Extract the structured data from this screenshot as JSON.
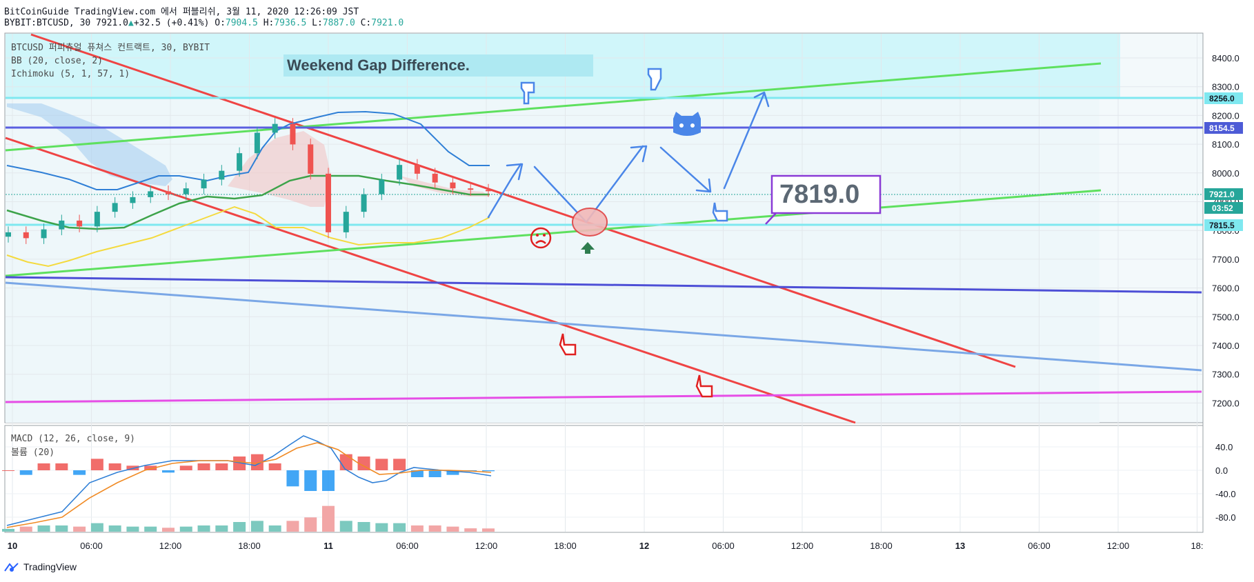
{
  "header": {
    "line1": "BitCoinGuide TradingView.com 에서 퍼블리쉬, 3월 11, 2020 12:26:09 JST",
    "symbol": "BYBIT:BTCUSD, 30 7921.0",
    "change": "+32.5 (+0.41%)",
    "o_label": "O:",
    "o": "7904.5",
    "h_label": "H:",
    "h": "7936.5",
    "l_label": "L:",
    "l": "7887.0",
    "c_label": "C:",
    "c": "7921.0"
  },
  "legend": {
    "main": "BTCUSD 퍼피츄얼 퓨쳐스 컨트랙트, 30, BYBIT",
    "bb": "BB (20, close, 2)",
    "ichimoku": "Ichimoku (5, 1, 57, 1)",
    "macd": "MACD (12, 26, close, 9)",
    "volume": "볼륨 (20)"
  },
  "annotations": {
    "title": "Weekend Gap Difference.",
    "price_callout": "7819.0"
  },
  "price_tags": {
    "t1": "8256.0",
    "t2": "8154.5",
    "t3": "7921.0",
    "t4": "03:52",
    "t5": "7815.5"
  },
  "branding": "TradingView",
  "colors": {
    "up": "#26a69a",
    "down": "#ef5350",
    "red_line": "#ef4444",
    "green_line": "#5ee05e",
    "blue_line": "#5a5fe0",
    "cyan_line": "#7fe8f0",
    "magenta_line": "#e64de6",
    "arrow": "#4a86e8"
  },
  "chart_data": [
    {
      "type": "line",
      "title": "",
      "y_axis": {
        "ylim": [
          7130,
          8460
        ],
        "ticks": [
          "8400.0",
          "8300.0",
          "8200.0",
          "8100.0",
          "8000.0",
          "7900.0",
          "7800.0",
          "7700.0",
          "7600.0",
          "7500.0",
          "7400.0",
          "7300.0",
          "7200.0"
        ]
      },
      "x_axis": {
        "ticks": [
          "10",
          "06:00",
          "12:00",
          "18:00",
          "11",
          "06:00",
          "12:00",
          "18:00",
          "12",
          "06:00",
          "12:00",
          "18:00",
          "13",
          "06:00",
          "12:00",
          "18:"
        ]
      },
      "series": [
        {
          "values": [
            7780,
            7760,
            7790,
            7820,
            7800,
            7850,
            7880,
            7900,
            7920,
            7910,
            7930,
            7960,
            7990,
            8050,
            8120,
            8150,
            8080,
            7980,
            7780,
            7850,
            7910,
            7960,
            8010,
            7980,
            7950,
            7930,
            7925,
            7921
          ]
        }
      ],
      "horizontal_levels": [
        8256.0,
        8154.5,
        7815.5
      ],
      "grid": true
    },
    {
      "type": "line",
      "legend_label": "MACD (12, 26, close, 9)",
      "y_axis": {
        "ticks": [
          "40.0",
          "0.0",
          "-40.0",
          "-80.0"
        ]
      },
      "grid": true
    }
  ]
}
